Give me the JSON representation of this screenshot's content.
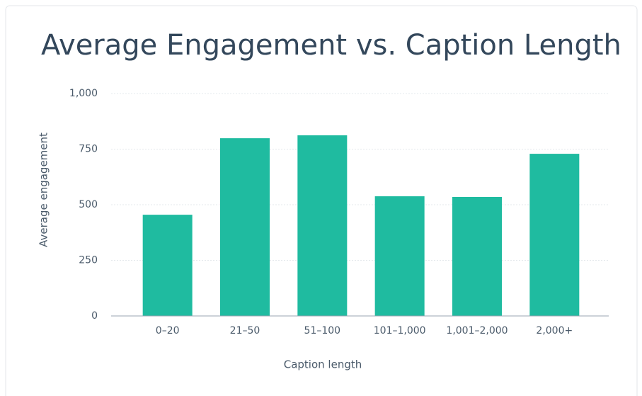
{
  "chart_data": {
    "type": "bar",
    "title": "Average Engagement vs. Caption Length",
    "x_label": "Caption length",
    "y_label": "Average engagement",
    "categories": [
      "0–20",
      "21–50",
      "51–100",
      "101–1,000",
      "1,001–2,000",
      "2,000+"
    ],
    "values": [
      455,
      799,
      812,
      538,
      535,
      729
    ],
    "color": "#1fbba0",
    "ylim": [
      0,
      1000
    ],
    "yticks": [
      0,
      250,
      500,
      750,
      {
        "value": 1000,
        "label": "1,000"
      }
    ],
    "grid": true
  }
}
